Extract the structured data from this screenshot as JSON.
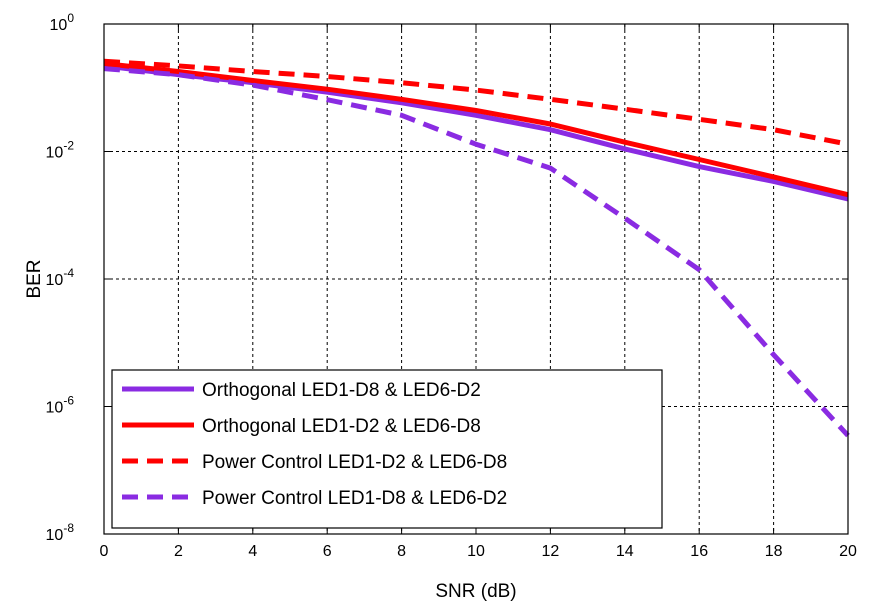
{
  "chart_data": {
    "type": "line",
    "xlabel": "SNR (dB)",
    "ylabel": "BER",
    "xlim": [
      0,
      20
    ],
    "ylim": [
      1e-08,
      1
    ],
    "yscale": "log",
    "grid": true,
    "legend_position": "bottom-left",
    "x_ticks": [
      "0",
      "2",
      "4",
      "6",
      "8",
      "10",
      "12",
      "14",
      "16",
      "18",
      "20"
    ],
    "y_ticks": [
      {
        "base": "10",
        "exp": "0"
      },
      {
        "base": "10",
        "exp": "-2"
      },
      {
        "base": "10",
        "exp": "-4"
      },
      {
        "base": "10",
        "exp": "-6"
      },
      {
        "base": "10",
        "exp": "-8"
      }
    ],
    "x": [
      0,
      2,
      4,
      6,
      8,
      10,
      12,
      14,
      16,
      18,
      20
    ],
    "series": [
      {
        "name": "Orthogonal LED1-D8 & LED6-D2",
        "color": "#8a2be2",
        "dash": "solid",
        "values": [
          0.22,
          0.16,
          0.12,
          0.085,
          0.058,
          0.037,
          0.022,
          0.011,
          0.0058,
          0.0034,
          0.0018
        ]
      },
      {
        "name": "Orthogonal LED1-D2 & LED6-D8",
        "color": "#ff0000",
        "dash": "solid",
        "values": [
          0.24,
          0.18,
          0.13,
          0.095,
          0.066,
          0.044,
          0.027,
          0.014,
          0.0075,
          0.004,
          0.0021
        ]
      },
      {
        "name": "Power Control LED1-D2 & LED6-D8",
        "color": "#ff0000",
        "dash": "dashed",
        "values": [
          0.26,
          0.22,
          0.18,
          0.15,
          0.12,
          0.092,
          0.066,
          0.046,
          0.032,
          0.022,
          0.013
        ]
      },
      {
        "name": "Power Control LED1-D8 & LED6-D2",
        "color": "#8a2be2",
        "dash": "dashed",
        "values": [
          0.2,
          0.16,
          0.11,
          0.065,
          0.037,
          0.013,
          0.0055,
          0.0009,
          0.00014,
          6.5e-06,
          3.5e-07
        ]
      }
    ]
  }
}
